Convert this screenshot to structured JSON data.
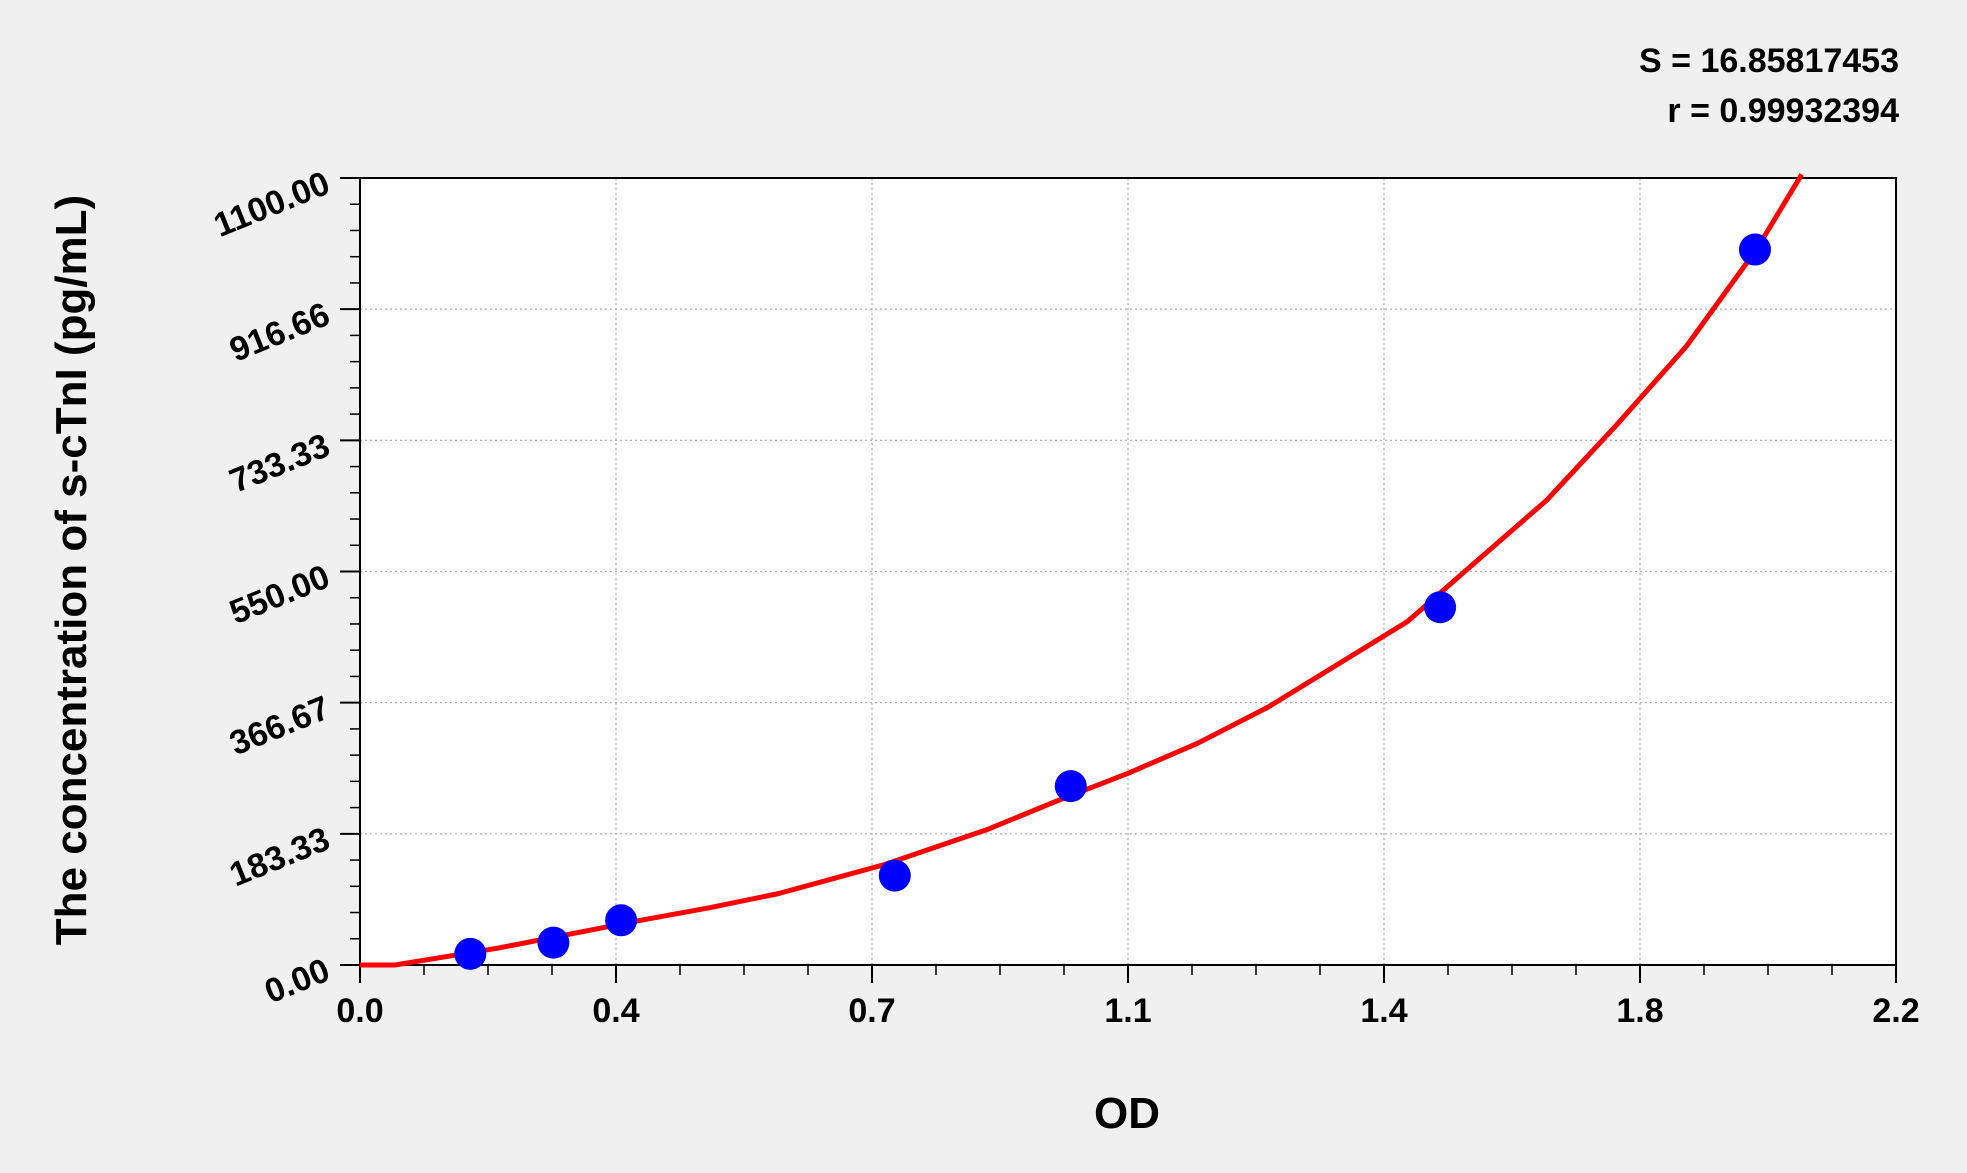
{
  "chart_data": {
    "type": "scatter",
    "title": "",
    "xlabel": "OD",
    "ylabel": "The concentration of s-cTnI (pg/mL)",
    "xlim": [
      0.0,
      2.2
    ],
    "ylim": [
      0.0,
      1100.0
    ],
    "x_ticks": [
      "0.0",
      "0.4",
      "0.7",
      "1.1",
      "1.4",
      "1.8",
      "2.2"
    ],
    "y_ticks": [
      "0.00",
      "183.33",
      "366.67",
      "550.00",
      "733.33",
      "916.66",
      "1100.00"
    ],
    "grid": true,
    "points": {
      "x": [
        0.158,
        0.277,
        0.374,
        0.766,
        1.018,
        1.547,
        1.998
      ],
      "y": [
        15.625,
        31.25,
        62.5,
        125,
        250,
        500,
        1000
      ],
      "color": "#0000ff"
    },
    "fit_curve": {
      "color": "#ff0000",
      "x": [
        0.0,
        0.05,
        0.1,
        0.2,
        0.3,
        0.4,
        0.5,
        0.6,
        0.75,
        0.9,
        1.0,
        1.1,
        1.2,
        1.3,
        1.4,
        1.5,
        1.6,
        1.7,
        1.8,
        1.9,
        2.0,
        2.065
      ],
      "y": [
        0,
        0,
        8,
        24,
        43,
        62,
        80,
        100,
        140,
        190,
        230,
        268,
        310,
        360,
        420,
        480,
        565,
        650,
        755,
        865,
        1000,
        1105
      ]
    },
    "annotations": [
      "S = 16.85817453",
      "r = 0.99932394"
    ]
  }
}
